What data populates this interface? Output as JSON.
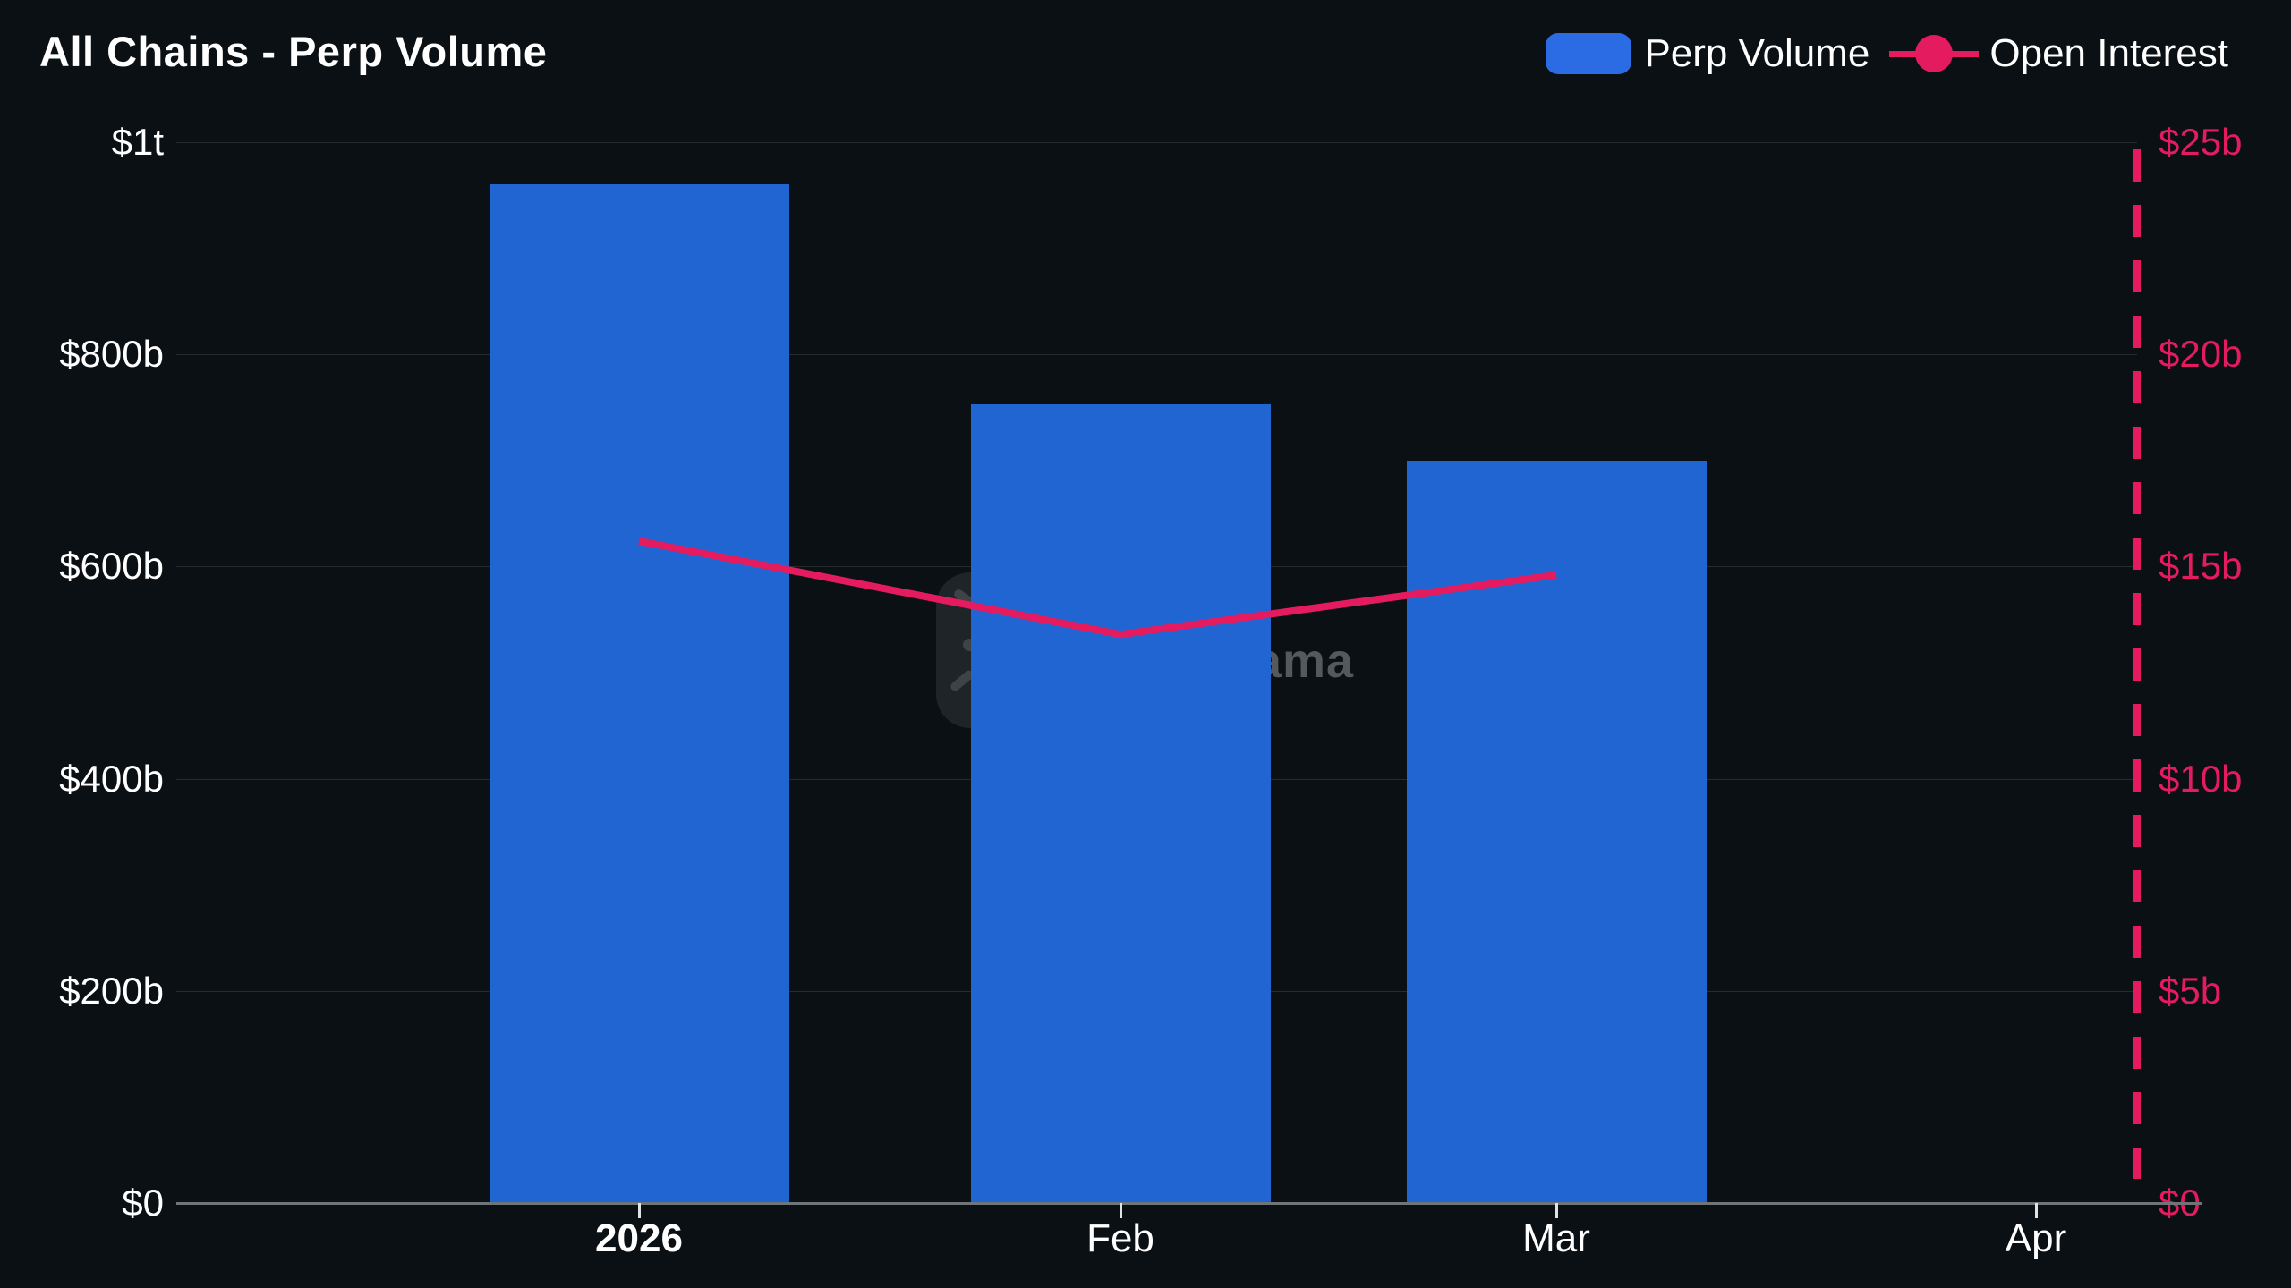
{
  "title": "All Chains - Perp Volume",
  "watermark_text": "DefiLlama",
  "colors": {
    "background": "#0a1013",
    "bar_blue": "#2065d2",
    "legend_swatch_blue": "#2b6be3",
    "pink": "#e41c5f",
    "gridline": "#262b2e",
    "zero_axis_line": "#6e7478",
    "text_white": "#ffffff",
    "watermark_gray": "#55585c"
  },
  "legend": {
    "items": [
      {
        "label": "Perp Volume",
        "marker": "bar-swatch"
      },
      {
        "label": "Open Interest",
        "marker": "line-dot"
      }
    ]
  },
  "chart_data": {
    "type": "bar",
    "subtype": "bar+line dual axis",
    "categories": [
      "2026",
      "Feb",
      "Mar",
      "Apr"
    ],
    "categories_bold": [
      "2026"
    ],
    "series": [
      {
        "name": "Perp Volume",
        "type": "bar",
        "axis": "left",
        "color": "#2065d2",
        "unit": "USD billions",
        "values": [
          960,
          753,
          700,
          null
        ]
      },
      {
        "name": "Open Interest",
        "type": "line",
        "axis": "right",
        "color": "#e41c5f",
        "unit": "USD billions",
        "values": [
          15.6,
          13.4,
          14.8,
          null
        ]
      }
    ],
    "left_axis": {
      "tick_labels": [
        "$1t",
        "$800b",
        "$600b",
        "$400b",
        "$200b",
        "$0"
      ],
      "min": 0,
      "max": 1000
    },
    "right_axis": {
      "tick_labels": [
        "$25b",
        "$20b",
        "$15b",
        "$10b",
        "$5b",
        "$0"
      ],
      "min": 0,
      "max": 25,
      "style": "pink dashed axis line"
    },
    "grid": "horizontal only",
    "legend_position": "top-right",
    "title": "All Chains - Perp Volume"
  }
}
